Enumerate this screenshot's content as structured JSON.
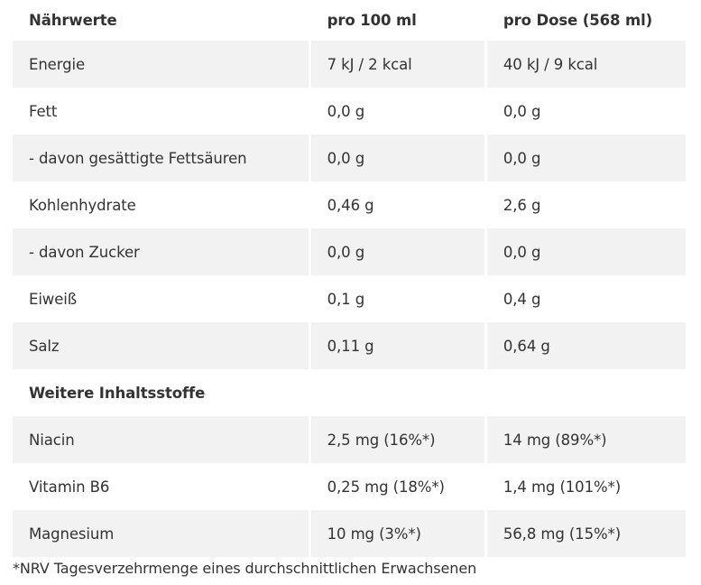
{
  "header": {
    "col1": "Nährwerte",
    "col2": "pro 100 ml",
    "col3": "pro Dose (568 ml)"
  },
  "nutrients": [
    {
      "name": "Energie",
      "per100": "7 kJ / 2 kcal",
      "perCan": "40 kJ / 9 kcal"
    },
    {
      "name": "Fett",
      "per100": "0,0 g",
      "perCan": "0,0 g"
    },
    {
      "name": "- davon gesättigte Fettsäuren",
      "per100": "0,0 g",
      "perCan": "0,0 g"
    },
    {
      "name": "Kohlenhydrate",
      "per100": "0,46 g",
      "perCan": "2,6 g"
    },
    {
      "name": "- davon Zucker",
      "per100": "0,0 g",
      "perCan": "0,0 g"
    },
    {
      "name": "Eiweiß",
      "per100": "0,1 g",
      "perCan": "0,4 g"
    },
    {
      "name": "Salz",
      "per100": "0,11 g",
      "perCan": "0,64 g"
    }
  ],
  "section": {
    "title": "Weitere Inhaltsstoffe"
  },
  "ingredients": [
    {
      "name": "Niacin",
      "per100": "2,5 mg (16%*)",
      "perCan": "14 mg (89%*)"
    },
    {
      "name": "Vitamin B6",
      "per100": "0,25 mg (18%*)",
      "perCan": "1,4 mg (101%*)"
    },
    {
      "name": "Magnesium",
      "per100": "10 mg (3%*)",
      "perCan": "56,8 mg (15%*)"
    }
  ],
  "footnote": "*NRV Tagesverzehrmenge eines durchschnittlichen Erwachsenen"
}
